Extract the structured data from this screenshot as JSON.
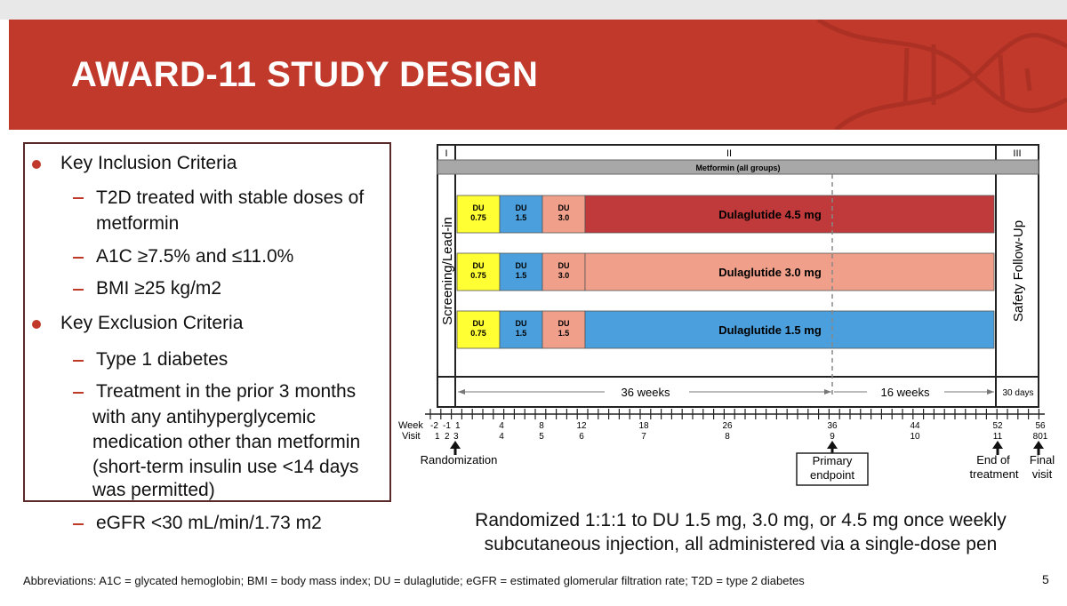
{
  "slide": {
    "title": "AWARD-11 STUDY DESIGN",
    "page_number": "5",
    "footer": "Abbreviations: A1C = glycated hemoglobin; BMI = body mass index; DU = dulaglutide; eGFR = estimated glomerular filtration rate; T2D = type 2 diabetes"
  },
  "criteria": {
    "inclusion_heading": "Key Inclusion Criteria",
    "inclusion": [
      "T2D treated with stable doses of",
      "metformin",
      "A1C ≥7.5% and ≤11.0%",
      "BMI ≥25 kg/m2"
    ],
    "exclusion_heading": "Key Exclusion Criteria",
    "exclusion": [
      "Type 1 diabetes",
      "Treatment in the prior 3 months",
      "with any antihyperglycemic",
      "medication other than metformin",
      "(short-term insulin use <14 days",
      "was permitted)",
      "eGFR <30 mL/min/1.73 m2"
    ]
  },
  "diagram": {
    "periods": [
      "I",
      "II",
      "III"
    ],
    "metformin_label": "Metformin (all groups)",
    "screening_label": "Screening/Lead-in",
    "followup_label": "Safety Follow-Up",
    "arms": [
      {
        "steps": [
          "DU 0.75",
          "DU 1.5",
          "DU 3.0"
        ],
        "final": "Dulaglutide 4.5 mg",
        "final_color": "#c0393b"
      },
      {
        "steps": [
          "DU 0.75",
          "DU 1.5",
          "DU 3.0"
        ],
        "final": "Dulaglutide 3.0 mg",
        "final_color": "#f0a08a"
      },
      {
        "steps": [
          "DU 0.75",
          "DU 1.5",
          "DU 1.5"
        ],
        "final": "Dulaglutide 1.5 mg",
        "final_color": "#4a9fdc"
      }
    ],
    "step_colors": [
      "#ffff33",
      "#4a9fdc",
      "#f0a08a"
    ],
    "durations": [
      "36 weeks",
      "16 weeks",
      "30 days"
    ],
    "week_label": "Week",
    "visit_label": "Visit",
    "weeks": [
      "-2",
      "-1",
      "1",
      "4",
      "8",
      "12",
      "18",
      "26",
      "36",
      "44",
      "52",
      "56"
    ],
    "visits": [
      "1",
      "2",
      "3",
      "4",
      "5",
      "6",
      "7",
      "8",
      "9",
      "10",
      "11",
      "801"
    ],
    "markers": [
      "Randomization",
      "Primary",
      "endpoint",
      "End of",
      "treatment",
      "Final",
      "visit"
    ]
  },
  "caption": [
    "Randomized 1:1:1 to DU 1.5 mg, 3.0 mg, or 4.5 mg once weekly",
    "subcutaneous injection, all administered via a single-dose pen"
  ]
}
